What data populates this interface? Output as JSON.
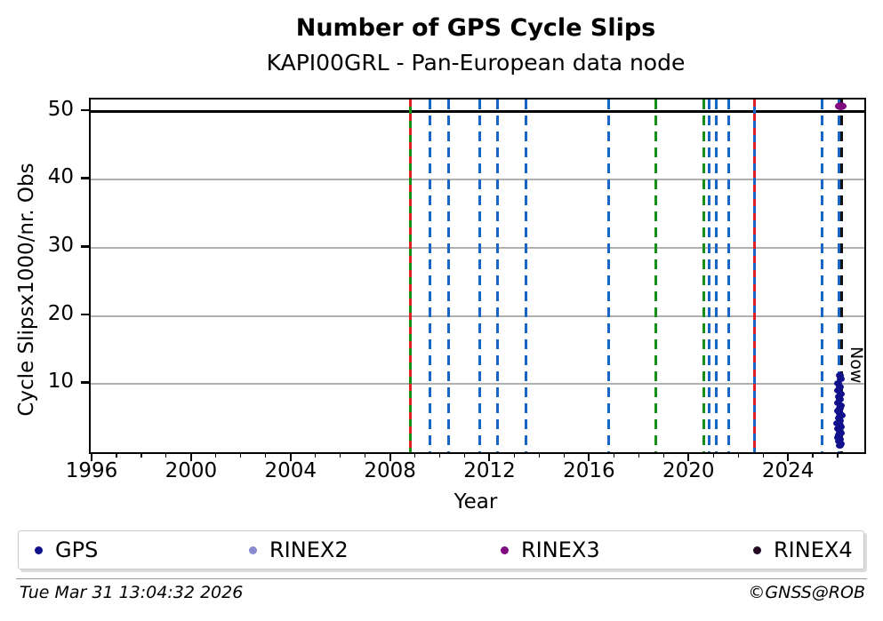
{
  "header": {
    "title": "Number of GPS Cycle Slips",
    "subtitle": "KAPI00GRL - Pan-European data node"
  },
  "chart_data": {
    "type": "scatter",
    "title": "Number of GPS Cycle Slips",
    "subtitle": "KAPI00GRL - Pan-European data node",
    "xlabel": "Year",
    "ylabel": "Cycle Slipsx1000/nr. Obs",
    "xlim": [
      1995.893,
      2027.0
    ],
    "ylim": [
      0,
      51.8
    ],
    "x_major_ticks": [
      1996,
      2000,
      2004,
      2008,
      2012,
      2016,
      2020,
      2024
    ],
    "x_minor_tick_step": 1,
    "y_ticks": [
      10,
      20,
      30,
      40,
      50
    ],
    "grid": "horizontal-gray",
    "cap_line_value": 50,
    "now": {
      "year": 2026.07,
      "label": "Now",
      "color": "#111111"
    },
    "event_lines": [
      {
        "year": 2008.73,
        "color": "#149114",
        "style": "solid",
        "overlay": "#df2020"
      },
      {
        "year": 2009.52,
        "color": "#1666c6",
        "style": "dash"
      },
      {
        "year": 2010.27,
        "color": "#1666c6",
        "style": "dash"
      },
      {
        "year": 2011.52,
        "color": "#1666c6",
        "style": "dash"
      },
      {
        "year": 2012.24,
        "color": "#1666c6",
        "style": "dash"
      },
      {
        "year": 2013.38,
        "color": "#1666c6",
        "style": "dash"
      },
      {
        "year": 2016.71,
        "color": "#1666c6",
        "style": "dash"
      },
      {
        "year": 2018.61,
        "color": "#149114",
        "style": "dash"
      },
      {
        "year": 2020.54,
        "color": "#149114",
        "style": "dash"
      },
      {
        "year": 2020.75,
        "color": "#1666c6",
        "style": "dash"
      },
      {
        "year": 2021.04,
        "color": "#1666c6",
        "style": "dash"
      },
      {
        "year": 2021.54,
        "color": "#1666c6",
        "style": "dash"
      },
      {
        "year": 2022.58,
        "color": "#1666c6",
        "style": "solid",
        "overlay": "#df2020"
      },
      {
        "year": 2025.3,
        "color": "#1666c6",
        "style": "dash"
      },
      {
        "year": 2025.98,
        "color": "#1666c6",
        "style": "dash"
      }
    ],
    "series": [
      {
        "name": "GPS",
        "color": "#11118c",
        "dot_w": 9,
        "dot_h": 7,
        "points": [
          [
            2026.0,
            11.3
          ],
          [
            2026.05,
            10.7
          ],
          [
            2025.96,
            10.1
          ],
          [
            2026.02,
            9.6
          ],
          [
            2025.94,
            9.1
          ],
          [
            2026.04,
            8.6
          ],
          [
            2025.98,
            8.2
          ],
          [
            2026.03,
            7.7
          ],
          [
            2025.95,
            7.3
          ],
          [
            2026.06,
            6.9
          ],
          [
            2026.0,
            6.5
          ],
          [
            2025.93,
            6.1
          ],
          [
            2026.02,
            5.7
          ],
          [
            2026.08,
            5.35
          ],
          [
            2025.97,
            5.0
          ],
          [
            2026.01,
            4.65
          ],
          [
            2025.91,
            4.3
          ],
          [
            2026.0,
            4.0
          ],
          [
            2026.05,
            3.7
          ],
          [
            2025.96,
            3.4
          ],
          [
            2026.02,
            3.1
          ],
          [
            2026.07,
            2.8
          ],
          [
            2025.99,
            2.5
          ],
          [
            2025.94,
            2.2
          ],
          [
            2026.03,
            1.9
          ],
          [
            2025.97,
            1.6
          ],
          [
            2026.04,
            1.3
          ],
          [
            2026.0,
            1.0
          ]
        ]
      },
      {
        "name": "RINEX2",
        "color": "#8a8ad0",
        "dot_w": 8,
        "dot_h": 8,
        "points": []
      },
      {
        "name": "RINEX3",
        "color": "#800b80",
        "dot_w": 13,
        "dot_h": 9,
        "points": [
          [
            2026.07,
            50.8
          ]
        ]
      },
      {
        "name": "RINEX4",
        "color": "#240a24",
        "dot_w": 8,
        "dot_h": 8,
        "points": []
      }
    ]
  },
  "legend": {
    "items": [
      {
        "label": "GPS",
        "color": "#11118c"
      },
      {
        "label": "RINEX2",
        "color": "#8a8ad0"
      },
      {
        "label": "RINEX3",
        "color": "#800b80"
      },
      {
        "label": "RINEX4",
        "color": "#240a24"
      }
    ]
  },
  "footer": {
    "timestamp": "Tue Mar 31 13:04:32 2026",
    "credit": "©GNSS@ROB"
  }
}
